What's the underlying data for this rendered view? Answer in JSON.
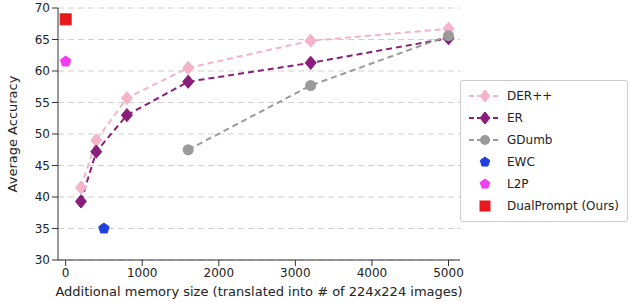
{
  "chart_data": {
    "type": "line",
    "x_label": "Additional memory size (translated into # of 224x224 images)",
    "y_label": "Average Accuracy",
    "xlim": [
      -100,
      5150
    ],
    "xticks": [
      0,
      1000,
      2000,
      3000,
      4000,
      5000
    ],
    "ylim": [
      30,
      70
    ],
    "yticks": [
      30,
      35,
      40,
      45,
      50,
      55,
      60,
      65,
      70
    ],
    "grid": true,
    "legend": "right",
    "series": [
      {
        "name": "DER++",
        "color": "#f4b3c6",
        "marker": "diamond",
        "line_style": "dashed",
        "x": [
          200,
          400,
          800,
          1600,
          3200,
          5000
        ],
        "values": [
          41.5,
          49,
          55.7,
          60.5,
          64.8,
          66.7
        ]
      },
      {
        "name": "ER",
        "color": "#8a1c7c",
        "marker": "diamond",
        "line_style": "dashed",
        "x": [
          200,
          400,
          800,
          1600,
          3200,
          5000
        ],
        "values": [
          39.3,
          47.2,
          53,
          58.3,
          61.3,
          65.2
        ]
      },
      {
        "name": "GDumb",
        "color": "#9a9a9a",
        "marker": "circle",
        "line_style": "dashed",
        "x": [
          1600,
          3200,
          5000
        ],
        "values": [
          47.5,
          57.7,
          65.6
        ]
      },
      {
        "name": "EWC",
        "color": "#1f3fe0",
        "marker": "pentagon",
        "line_style": "none",
        "x": [
          500
        ],
        "values": [
          35
        ]
      },
      {
        "name": "L2P",
        "color": "#f23cf2",
        "marker": "pentagon",
        "line_style": "none",
        "x": [
          0
        ],
        "values": [
          61.5
        ]
      },
      {
        "name": "DualPrompt (Ours)",
        "color": "#e8191c",
        "marker": "square",
        "line_style": "none",
        "x": [
          0
        ],
        "values": [
          68.2
        ]
      }
    ]
  }
}
